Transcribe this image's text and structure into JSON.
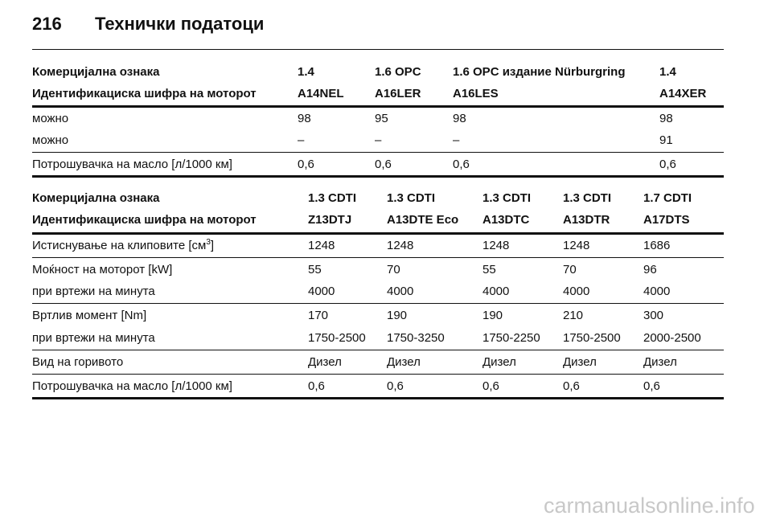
{
  "header": {
    "page_number": "216",
    "title": "Технички податоци"
  },
  "table1": {
    "header_rows": [
      [
        "Комерцијална ознака",
        "1.4",
        "1.6 OPC",
        "1.6 OPC издание Nürburgring",
        "1.4"
      ],
      [
        "Идентификациска шифра на моторот",
        "A14NEL",
        "A16LER",
        "A16LES",
        "A14XER"
      ]
    ],
    "rows": [
      [
        "можно",
        "98",
        "95",
        "98",
        "98"
      ],
      [
        "можно",
        "–",
        "–",
        "–",
        "91"
      ],
      [
        "Потрошувачка на масло [л/1000 км]",
        "0,6",
        "0,6",
        "0,6",
        "0,6"
      ]
    ]
  },
  "table2": {
    "header_rows": [
      [
        "Комерцијална ознака",
        "1.3 CDTI",
        "1.3 CDTI",
        "1.3 CDTI",
        "1.3 CDTI",
        "1.7 CDTI"
      ],
      [
        "Идентификациска шифра на моторот",
        "Z13DTJ",
        "A13DTE Eco",
        "A13DTC",
        "A13DTR",
        "A17DTS"
      ]
    ],
    "rows": [
      [
        {
          "text": "Истиснување на клиповите [см",
          "sup": "3",
          "after": "]"
        },
        "1248",
        "1248",
        "1248",
        "1248",
        "1686"
      ],
      [
        "Моќност на моторот [kW]",
        "55",
        "70",
        "55",
        "70",
        "96"
      ],
      [
        "при вртежи на минута",
        "4000",
        "4000",
        "4000",
        "4000",
        "4000"
      ],
      [
        "Вртлив момент [Nm]",
        "170",
        "190",
        "190",
        "210",
        "300"
      ],
      [
        "при вртежи на минута",
        "1750-2500",
        "1750-3250",
        "1750-2250",
        "1750-2500",
        "2000-2500"
      ],
      [
        "Вид на горивото",
        "Дизел",
        "Дизел",
        "Дизел",
        "Дизел",
        "Дизел"
      ],
      [
        "Потрошувачка на масло [л/1000 км]",
        "0,6",
        "0,6",
        "0,6",
        "0,6",
        "0,6"
      ]
    ]
  },
  "watermark": "carmanualsonline.info"
}
